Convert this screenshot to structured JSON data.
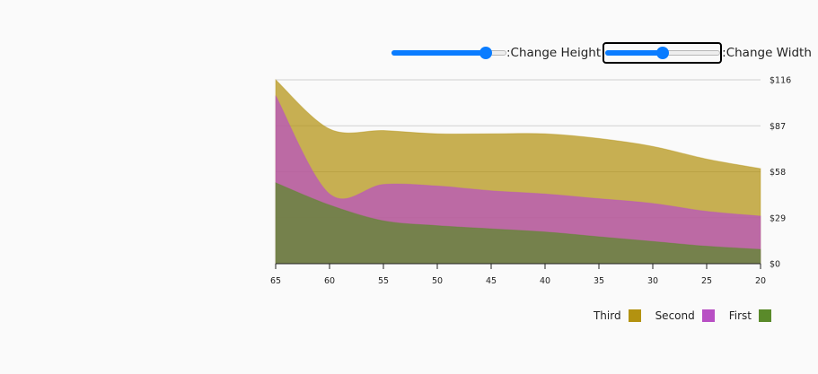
{
  "controls": {
    "height_slider": {
      "label": ":Change Height",
      "value": 0.82
    },
    "width_slider": {
      "label": ":Change Width",
      "value": 0.5
    }
  },
  "chart_data": {
    "type": "area",
    "stacked": true,
    "x": [
      65,
      60,
      55,
      50,
      45,
      40,
      35,
      30,
      25,
      20
    ],
    "xlim": [
      65,
      20
    ],
    "ylim": [
      0,
      116
    ],
    "x_ticks": [
      "65",
      "60",
      "55",
      "50",
      "45",
      "40",
      "35",
      "30",
      "25",
      "20"
    ],
    "y_ticks": [
      "$0",
      "$29",
      "$58",
      "$87",
      "$116"
    ],
    "y_tick_values": [
      0,
      29,
      58,
      87,
      116
    ],
    "grid": true,
    "y_axis_position": "right",
    "legend_position": "bottom-right",
    "series": [
      {
        "name": "First",
        "color": "#5a8a2a",
        "values": [
          51,
          37,
          27,
          24,
          22,
          20,
          17,
          14,
          11,
          9
        ]
      },
      {
        "name": "Second",
        "color": "#b84fc4",
        "values": [
          55,
          7,
          23,
          25,
          24,
          24,
          24,
          24,
          22,
          21
        ]
      },
      {
        "name": "Third",
        "color": "#b39210",
        "values": [
          10,
          41,
          34,
          33,
          36,
          38,
          38,
          36,
          33,
          30
        ]
      }
    ],
    "legend": [
      "Third",
      "Second",
      "First"
    ]
  }
}
